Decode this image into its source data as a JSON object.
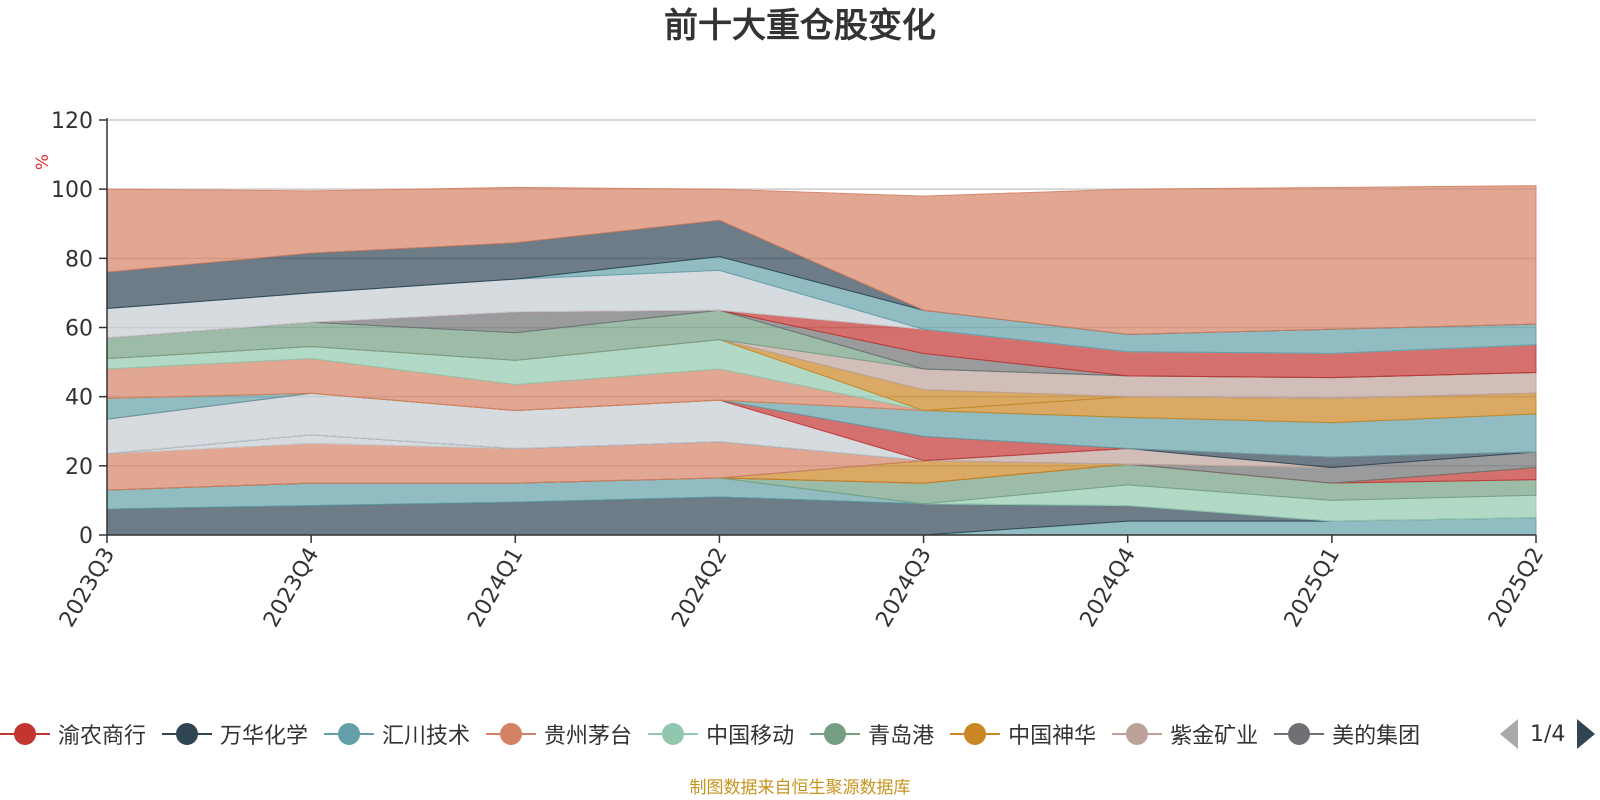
{
  "chart_data": {
    "type": "area",
    "stacked": true,
    "title": "前十大重仓股变化",
    "ylabel": "%",
    "ylim": [
      0,
      120
    ],
    "yticks": [
      0,
      20,
      40,
      60,
      80,
      100,
      120
    ],
    "grid": true,
    "legend_position": "bottom",
    "categories": [
      "2023Q3",
      "2023Q4",
      "2024Q1",
      "2024Q2",
      "2024Q3",
      "2024Q4",
      "2025Q1",
      "2025Q2"
    ],
    "layers": [
      {
        "color": "#61a0a8",
        "values": [
          0,
          0,
          0,
          0,
          0,
          4,
          4,
          5
        ]
      },
      {
        "color": "#2f4554",
        "values": [
          7.5,
          8.5,
          9.5,
          11,
          9,
          4.5,
          0,
          0
        ]
      },
      {
        "color": "#61a0a8",
        "values": [
          5.5,
          6.5,
          5.5,
          5.5,
          0,
          0,
          0,
          0
        ]
      },
      {
        "color": "#91c7ae",
        "values": [
          0,
          0,
          0,
          0,
          0,
          6,
          6,
          6.5
        ]
      },
      {
        "color": "#749f83",
        "values": [
          0,
          0,
          0,
          0,
          6,
          6,
          5,
          4.5
        ]
      },
      {
        "color": "#c23531",
        "values": [
          0,
          0,
          0,
          0,
          0,
          0,
          0,
          3.5
        ]
      },
      {
        "color": "#ca8622",
        "values": [
          0,
          0,
          0,
          0,
          6.5,
          0,
          0,
          0
        ]
      },
      {
        "color": "#6e7074",
        "values": [
          0,
          0,
          0,
          0,
          0,
          0,
          4.5,
          4.5
        ]
      },
      {
        "color": "#d48265",
        "values": [
          10.5,
          11.5,
          10,
          10.5,
          0,
          0,
          0,
          0
        ]
      },
      {
        "color": "#c4ccd3",
        "values": [
          0,
          2.5,
          0,
          0,
          0,
          0,
          0,
          0
        ]
      },
      {
        "color": "#bda29a",
        "values": [
          0,
          0,
          0,
          0,
          0,
          4.5,
          0,
          0
        ]
      },
      {
        "color": "#2f4554",
        "values": [
          0,
          0,
          0,
          0,
          0,
          0,
          3,
          0
        ]
      },
      {
        "color": "#c4ccd3",
        "values": [
          10,
          12,
          11,
          12,
          0,
          0,
          0,
          0
        ]
      },
      {
        "color": "#c23531",
        "values": [
          0,
          0,
          0,
          0,
          7,
          0,
          0,
          0
        ]
      },
      {
        "color": "#61a0a8",
        "values": [
          6,
          0,
          0,
          0,
          7.5,
          9,
          10,
          11
        ]
      },
      {
        "color": "#ca8622",
        "values": [
          0,
          0,
          0,
          0,
          0,
          6,
          7,
          6
        ]
      },
      {
        "color": "#d48265",
        "values": [
          8.5,
          10,
          7.5,
          9,
          0,
          0,
          0,
          0
        ]
      },
      {
        "color": "#91c7ae",
        "values": [
          3,
          3.5,
          7,
          8.5,
          0,
          0,
          0,
          0
        ]
      },
      {
        "color": "#ca8622",
        "values": [
          0,
          0,
          0,
          0,
          6,
          0,
          0,
          0
        ]
      },
      {
        "color": "#bda29a",
        "values": [
          0,
          0,
          0,
          0,
          6,
          6,
          6,
          6
        ]
      },
      {
        "color": "#749f83",
        "values": [
          6,
          7,
          8,
          8.5,
          0,
          0,
          0,
          0
        ]
      },
      {
        "color": "#6e7074",
        "values": [
          0,
          0,
          6,
          0,
          4.5,
          0,
          0,
          0
        ]
      },
      {
        "color": "#c23531",
        "values": [
          0,
          0,
          0,
          0,
          7,
          7,
          7,
          8
        ]
      },
      {
        "color": "#c4ccd3",
        "values": [
          8.5,
          8.5,
          9.5,
          11.5,
          0,
          0,
          0,
          0
        ]
      },
      {
        "color": "#61a0a8",
        "values": [
          0,
          0,
          0,
          4,
          5.5,
          5,
          7,
          6
        ]
      },
      {
        "color": "#2f4554",
        "values": [
          10.5,
          11.5,
          10.5,
          10.5,
          0,
          0,
          0,
          0
        ]
      },
      {
        "color": "#d48265",
        "values": [
          24,
          18,
          16,
          9,
          33,
          42,
          41,
          40
        ]
      }
    ]
  },
  "legend": {
    "items": [
      {
        "label": "渝农商行",
        "color": "#c23531"
      },
      {
        "label": "万华化学",
        "color": "#2f4554"
      },
      {
        "label": "汇川技术",
        "color": "#61a0a8"
      },
      {
        "label": "贵州茅台",
        "color": "#d48265"
      },
      {
        "label": "中国移动",
        "color": "#91c7ae"
      },
      {
        "label": "青岛港",
        "color": "#749f83"
      },
      {
        "label": "中国神华",
        "color": "#ca8622"
      },
      {
        "label": "紫金矿业",
        "color": "#bda29a"
      },
      {
        "label": "美的集团",
        "color": "#6e7074"
      }
    ],
    "page_text": "1/4"
  },
  "footer": "制图数据来自恒生聚源数据库"
}
